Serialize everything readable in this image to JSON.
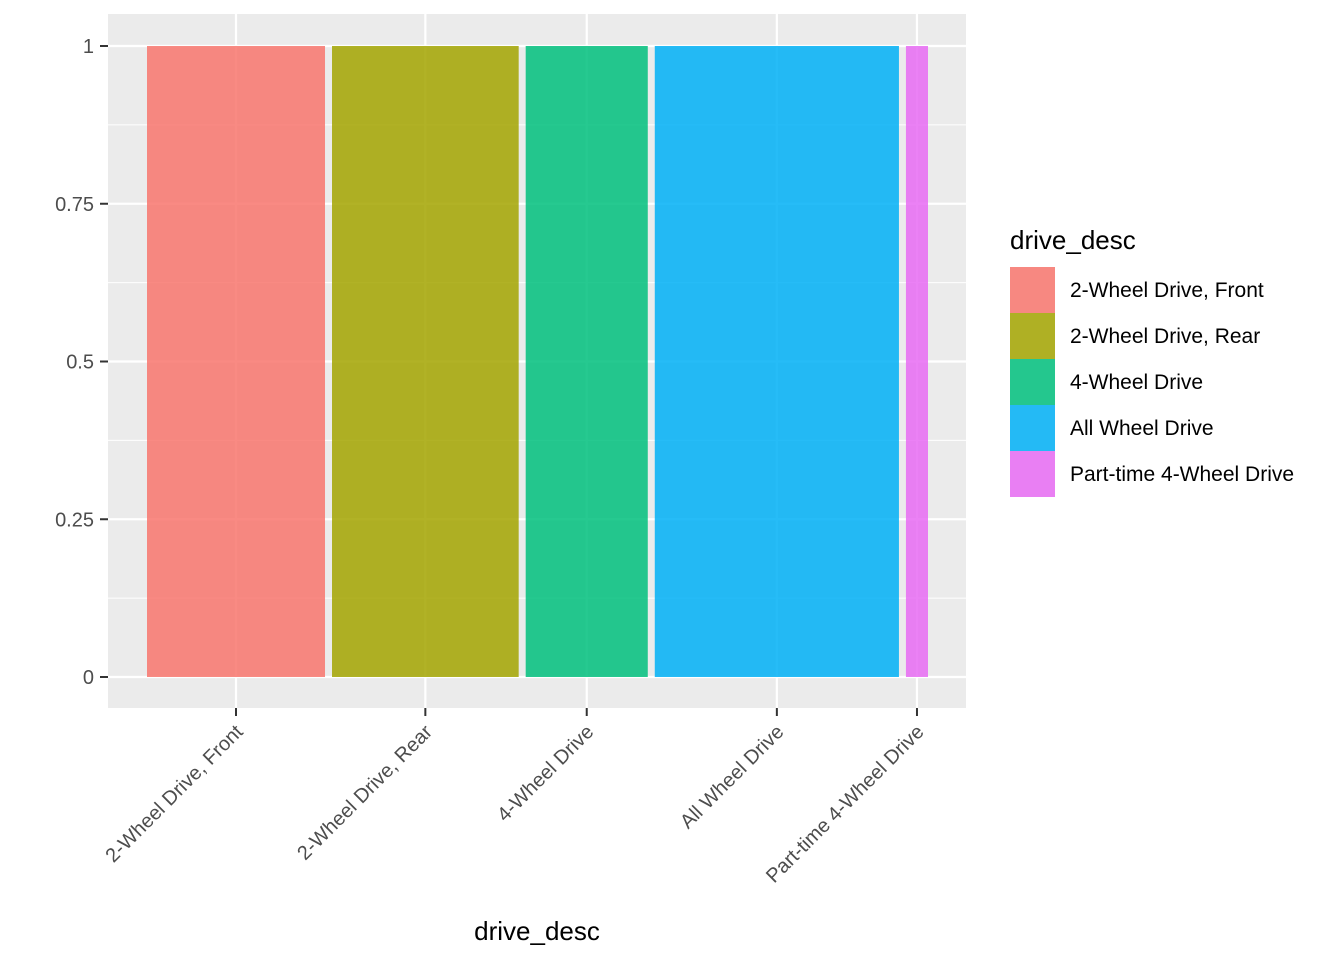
{
  "chart_data": {
    "type": "bar",
    "subtype": "variable-width stacked proportion (mosaic/marimekko)",
    "title": "",
    "xlabel": "drive_desc",
    "ylabel": "",
    "ylim": [
      0,
      1
    ],
    "yticks": [
      0,
      0.25,
      0.5,
      0.75,
      1
    ],
    "ytick_labels": [
      "0",
      "0.25",
      "0.5",
      "0.75",
      "1"
    ],
    "categories": [
      "2-Wheel Drive, Front",
      "2-Wheel Drive, Rear",
      "4-Wheel Drive",
      "All Wheel Drive",
      "Part-time 4-Wheel Drive"
    ],
    "values": [
      1,
      1,
      1,
      1,
      1
    ],
    "relative_widths": [
      0.226,
      0.237,
      0.155,
      0.31,
      0.028
    ],
    "colors": [
      "#F8766D",
      "#A3A500",
      "#00BF7D",
      "#00B0F6",
      "#E76BF3"
    ],
    "bar_opacity": 0.85,
    "background_color": "#EBEBEB",
    "gridline_color": "#FFFFFF",
    "grid": true,
    "legend": {
      "title": "drive_desc",
      "placement": "right",
      "entries": [
        "2-Wheel Drive, Front",
        "2-Wheel Drive, Rear",
        "4-Wheel Drive",
        "All Wheel Drive",
        "Part-time 4-Wheel Drive"
      ]
    }
  }
}
